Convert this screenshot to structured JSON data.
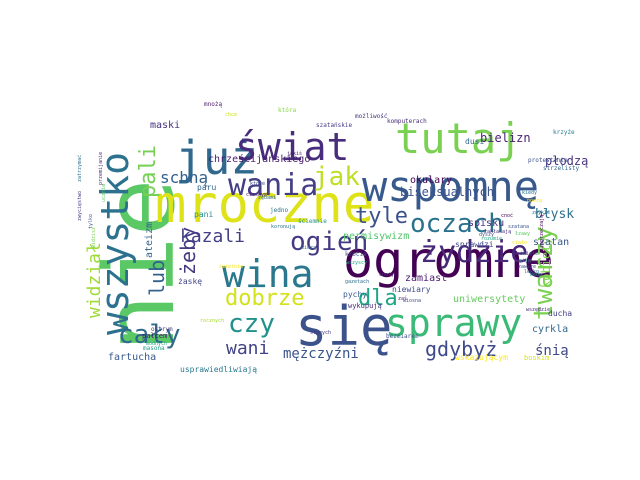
{
  "word_cloud": {
    "words": [
      {
        "text": "nie",
        "color": "#5ac864"
      },
      {
        "text": "się",
        "color": "#3b528b"
      },
      {
        "text": "ogromne",
        "color": "#440154"
      },
      {
        "text": "mroczne",
        "color": "#dde318"
      },
      {
        "text": "tutaj",
        "color": "#7ad151"
      },
      {
        "text": "wspomnę",
        "color": "#38598c"
      },
      {
        "text": "wszystko",
        "color": "#2c728e"
      },
      {
        "text": "już",
        "color": "#31688e"
      },
      {
        "text": "świat",
        "color": "#472d7b"
      },
      {
        "text": "wina",
        "color": "#2a788e"
      },
      {
        "text": "sprawy",
        "color": "#3aba76"
      },
      {
        "text": "wania",
        "color": "#433e85"
      },
      {
        "text": "żydzie",
        "color": "#482878"
      },
      {
        "text": "twarzy",
        "color": "#7ad151"
      },
      {
        "text": "cały",
        "color": "#31688e"
      },
      {
        "text": "jak",
        "color": "#bddf26"
      },
      {
        "text": "oczach",
        "color": "#2c728e"
      },
      {
        "text": "ogień",
        "color": "#443983"
      },
      {
        "text": "czy",
        "color": "#21918c"
      },
      {
        "text": "dobrze",
        "color": "#d2e21b"
      },
      {
        "text": "tyle",
        "color": "#3b528b"
      },
      {
        "text": "dla",
        "color": "#20a486"
      },
      {
        "text": "gdybyż",
        "color": "#3e4989"
      },
      {
        "text": "widział",
        "color": "#a0da39"
      },
      {
        "text": "pali",
        "color": "#75d054"
      },
      {
        "text": "żeby",
        "color": "#443983"
      },
      {
        "text": "kazali",
        "color": "#424086"
      },
      {
        "text": "lub",
        "color": "#33638d"
      },
      {
        "text": "wani",
        "color": "#414487"
      },
      {
        "text": "schną",
        "color": "#33638d"
      },
      {
        "text": "mężczyźni",
        "color": "#39558c"
      },
      {
        "text": "śnią",
        "color": "#3f4788"
      },
      {
        "text": "biseksualnych",
        "color": "#3b528b"
      },
      {
        "text": "płodzą",
        "color": "#46337e"
      },
      {
        "text": "bielizn",
        "color": "#481f70"
      },
      {
        "text": "błysk",
        "color": "#2d708e"
      },
      {
        "text": "kobiety",
        "color": "#7fd34e"
      },
      {
        "text": "okulary",
        "color": "#440154"
      },
      {
        "text": "uniwersytety",
        "color": "#65cb5e"
      },
      {
        "text": "maski",
        "color": "#46327e"
      },
      {
        "text": "zamiast",
        "color": "#481b6d"
      },
      {
        "text": "fartucha",
        "color": "#38598c"
      },
      {
        "text": "cyrkla",
        "color": "#31688e"
      },
      {
        "text": "chrześcijańskiego",
        "color": "#481c6e"
      },
      {
        "text": "permisywizm",
        "color": "#52c569"
      },
      {
        "text": "spisku",
        "color": "#46327e"
      },
      {
        "text": "szatan",
        "color": "#38598c"
      },
      {
        "text": "ateizm",
        "color": "#33638d"
      },
      {
        "text": "sprawdzi",
        "color": "#3e4989"
      },
      {
        "text": "paru",
        "color": "#31688e"
      },
      {
        "text": "pani",
        "color": "#21918c"
      },
      {
        "text": "dusi",
        "color": "#32658e"
      },
      {
        "text": "żaskę",
        "color": "#404688"
      },
      {
        "text": "niewiary",
        "color": "#3e4989"
      },
      {
        "text": "pychy",
        "color": "#375a8c"
      },
      {
        "text": "ducha",
        "color": "#433e85"
      },
      {
        "text": "palcem",
        "color": "#471164"
      },
      {
        "text": "usprawiedliwiają",
        "color": "#2a788e"
      },
      {
        "text": "boskim",
        "color": "#d8e219"
      },
      {
        "text": "wskazującym",
        "color": "#fde725"
      },
      {
        "text": "komputerach",
        "color": "#472d7b"
      },
      {
        "text": "która",
        "color": "#86d549"
      },
      {
        "text": "mnożą",
        "color": "#48186a"
      },
      {
        "text": "chce",
        "color": "#cae11f"
      },
      {
        "text": "szatańskie",
        "color": "#443983"
      },
      {
        "text": "możliwość",
        "color": "#46337e"
      },
      {
        "text": "strzelisty",
        "color": "#31688e"
      },
      {
        "text": "masona",
        "color": "#1f9e89"
      },
      {
        "text": "zatrzymać",
        "color": "#2c728e"
      },
      {
        "text": "krzyże",
        "color": "#277f8e"
      },
      {
        "text": "protestanta",
        "color": "#3b528b"
      },
      {
        "text": "wykupują",
        "color": "#472f7d"
      },
      {
        "text": "ostrym",
        "color": "#453781"
      },
      {
        "text": "zakładają",
        "color": "#46307e"
      },
      {
        "text": "modnych",
        "color": "#21a585"
      },
      {
        "text": "jedno",
        "color": "#2e6e8e"
      },
      {
        "text": "rocznych",
        "color": "#a5db36"
      },
      {
        "text": "ciasnym",
        "color": "#48186a"
      },
      {
        "text": "zębami",
        "color": "#31688e"
      },
      {
        "text": "krocie",
        "color": "#3b528b"
      },
      {
        "text": "ściemnie",
        "color": "#20928c"
      },
      {
        "text": "jakiś",
        "color": "#481a6c"
      },
      {
        "text": "słonych",
        "color": "#46327e"
      },
      {
        "text": "wszyscy",
        "color": "#22a884"
      },
      {
        "text": "które",
        "color": "#3e4989"
      },
      {
        "text": "gazetach",
        "color": "#2d708e"
      },
      {
        "text": "cnoty",
        "color": "#472d7b"
      },
      {
        "text": "rozumie",
        "color": "#22a884"
      },
      {
        "text": "dyszy",
        "color": "#3b528b"
      },
      {
        "text": "koronują",
        "color": "#2c728e"
      },
      {
        "text": "świetnie",
        "color": "#fde725"
      },
      {
        "text": "zaprzeczają",
        "color": "#440154"
      },
      {
        "text": "zwycięstwo",
        "color": "#433e85"
      },
      {
        "text": "widzą",
        "color": "#2a788e"
      },
      {
        "text": "przemijanie",
        "color": "#482878"
      },
      {
        "text": "ucznia",
        "color": "#5ec962"
      },
      {
        "text": "tylko",
        "color": "#3b528b"
      },
      {
        "text": "widzisz",
        "color": "#7ad151"
      },
      {
        "text": "kiedy",
        "color": "#2c728e"
      },
      {
        "text": "noszą",
        "color": "#fde725"
      },
      {
        "text": "cnoć",
        "color": "#440154"
      },
      {
        "text": "zwykle",
        "color": "#2c728e"
      },
      {
        "text": "zawsze",
        "color": "#3b528b"
      },
      {
        "text": "lekko",
        "color": "#31688e"
      },
      {
        "text": "będą",
        "color": "#21918c"
      },
      {
        "text": "wszędzie",
        "color": "#482878"
      },
      {
        "text": "szatana",
        "color": "#3b528b"
      },
      {
        "text": "łzawy",
        "color": "#5ec962"
      },
      {
        "text": "święte",
        "color": "#3b528b"
      },
      {
        "text": "mija",
        "color": "#21918c"
      },
      {
        "text": "nocą",
        "color": "#482878"
      },
      {
        "text": "ciało",
        "color": "#fde725"
      },
      {
        "text": "bezmiarem",
        "color": "#3b528b"
      },
      {
        "text": "zaś",
        "color": "#481b6d"
      },
      {
        "text": "wiosna",
        "color": "#3e4989"
      }
    ]
  }
}
